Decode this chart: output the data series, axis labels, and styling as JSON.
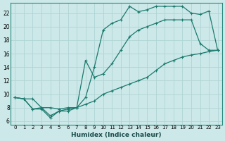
{
  "xlabel": "Humidex (Indice chaleur)",
  "xlim": [
    -0.5,
    23.5
  ],
  "ylim": [
    5.5,
    23.5
  ],
  "xticks": [
    0,
    1,
    2,
    3,
    4,
    5,
    6,
    7,
    8,
    9,
    10,
    11,
    12,
    13,
    14,
    15,
    16,
    17,
    18,
    19,
    20,
    21,
    22,
    23
  ],
  "yticks": [
    6,
    8,
    10,
    12,
    14,
    16,
    18,
    20,
    22
  ],
  "bg_color": "#cce8e8",
  "grid_color": "#b0d4d4",
  "line_color": "#1a7a6e",
  "line1_x": [
    0,
    1,
    2,
    3,
    4,
    5,
    6,
    7,
    8,
    9,
    10,
    11,
    12,
    13,
    14,
    15,
    16,
    17,
    18,
    19,
    20,
    21,
    22,
    23
  ],
  "line1_y": [
    9.5,
    9.3,
    9.3,
    8.0,
    8.0,
    7.8,
    8.0,
    8.0,
    8.5,
    9.0,
    10.0,
    10.5,
    11.0,
    11.5,
    12.0,
    12.5,
    13.5,
    14.5,
    15.0,
    15.5,
    15.8,
    16.0,
    16.3,
    16.5
  ],
  "line2_x": [
    0,
    1,
    2,
    3,
    4,
    5,
    6,
    7,
    8,
    9,
    10,
    11,
    12,
    13,
    14,
    15,
    16,
    17,
    18,
    19,
    20,
    21,
    22,
    23
  ],
  "line2_y": [
    9.5,
    9.3,
    7.8,
    8.0,
    6.8,
    7.5,
    7.8,
    8.0,
    15.0,
    12.5,
    13.0,
    14.5,
    16.5,
    18.5,
    19.5,
    20.0,
    20.5,
    21.0,
    21.0,
    21.0,
    21.0,
    17.5,
    16.5,
    16.5
  ],
  "line3_x": [
    0,
    1,
    2,
    3,
    4,
    5,
    6,
    7,
    8,
    9,
    10,
    11,
    12,
    13,
    14,
    15,
    16,
    17,
    18,
    19,
    20,
    21,
    22,
    23
  ],
  "line3_y": [
    9.5,
    9.3,
    7.8,
    7.8,
    6.5,
    7.5,
    7.5,
    8.0,
    9.5,
    14.0,
    19.5,
    20.5,
    21.0,
    23.0,
    22.2,
    22.5,
    23.0,
    23.0,
    23.0,
    23.0,
    22.0,
    21.8,
    22.3,
    16.5
  ]
}
